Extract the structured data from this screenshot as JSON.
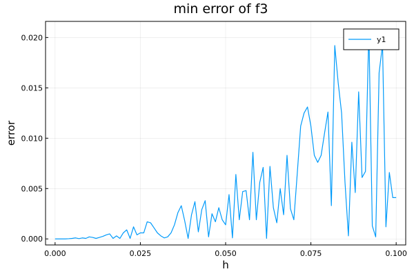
{
  "chart_data": {
    "type": "line",
    "title": "min error of f3",
    "xlabel": "h",
    "ylabel": "error",
    "xlim": [
      -0.0028,
      0.1028
    ],
    "ylim": [
      -0.0006,
      0.0216
    ],
    "xticks": [
      0.0,
      0.025,
      0.05,
      0.075,
      0.1
    ],
    "xtick_labels": [
      "0.000",
      "0.025",
      "0.050",
      "0.075",
      "0.100"
    ],
    "yticks": [
      0.0,
      0.005,
      0.01,
      0.015,
      0.02
    ],
    "ytick_labels": [
      "0.000",
      "0.005",
      "0.010",
      "0.015",
      "0.020"
    ],
    "grid": true,
    "legend_position": "top-right",
    "series": [
      {
        "name": "y1",
        "color": "#009AFA",
        "x": [
          0.0,
          0.001,
          0.002,
          0.003,
          0.004,
          0.005,
          0.006,
          0.007,
          0.008,
          0.009,
          0.01,
          0.011,
          0.012,
          0.013,
          0.014,
          0.015,
          0.016,
          0.017,
          0.018,
          0.019,
          0.02,
          0.021,
          0.022,
          0.023,
          0.024,
          0.025,
          0.026,
          0.027,
          0.028,
          0.029,
          0.03,
          0.031,
          0.032,
          0.033,
          0.034,
          0.035,
          0.036,
          0.037,
          0.038,
          0.039,
          0.04,
          0.041,
          0.042,
          0.043,
          0.044,
          0.045,
          0.046,
          0.047,
          0.048,
          0.049,
          0.05,
          0.051,
          0.052,
          0.053,
          0.054,
          0.055,
          0.056,
          0.057,
          0.058,
          0.059,
          0.06,
          0.061,
          0.062,
          0.063,
          0.064,
          0.065,
          0.066,
          0.067,
          0.068,
          0.069,
          0.07,
          0.071,
          0.072,
          0.073,
          0.074,
          0.075,
          0.076,
          0.077,
          0.078,
          0.079,
          0.08,
          0.081,
          0.082,
          0.083,
          0.084,
          0.085,
          0.086,
          0.087,
          0.088,
          0.089,
          0.09,
          0.091,
          0.092,
          0.093,
          0.094,
          0.095,
          0.096,
          0.097,
          0.098,
          0.099,
          0.1
        ],
        "values": [
          0.0,
          0.0,
          0.0,
          0.0,
          2e-05,
          5e-05,
          0.0001,
          3e-05,
          0.0001,
          5e-05,
          0.0002,
          0.00015,
          5e-05,
          0.00015,
          0.00025,
          0.0004,
          0.0005,
          5e-05,
          0.0003,
          5e-05,
          0.0006,
          0.0009,
          5e-05,
          0.0012,
          0.0004,
          0.0006,
          0.0006,
          0.0017,
          0.0016,
          0.0011,
          0.0006,
          0.0003,
          0.0001,
          0.0002,
          0.0006,
          0.0014,
          0.0026,
          0.0033,
          0.0018,
          5e-05,
          0.0024,
          0.0037,
          0.0007,
          0.0029,
          0.0038,
          0.0002,
          0.0025,
          0.0017,
          0.0031,
          0.0019,
          0.0014,
          0.0044,
          0.0001,
          0.0064,
          0.0019,
          0.0047,
          0.0048,
          0.0019,
          0.0086,
          0.0019,
          0.0056,
          0.0071,
          5e-05,
          0.0072,
          0.0031,
          0.0016,
          0.005,
          0.0024,
          0.0083,
          0.003,
          0.0019,
          0.0065,
          0.0112,
          0.0125,
          0.0131,
          0.0112,
          0.0083,
          0.0076,
          0.0083,
          0.0105,
          0.0126,
          0.0033,
          0.0192,
          0.0155,
          0.0125,
          0.0056,
          0.0003,
          0.0096,
          0.0046,
          0.0146,
          0.0061,
          0.0067,
          0.0208,
          0.0013,
          0.0002,
          0.0165,
          0.0193,
          0.0012,
          0.0066,
          0.0041,
          0.0041
        ]
      }
    ]
  }
}
